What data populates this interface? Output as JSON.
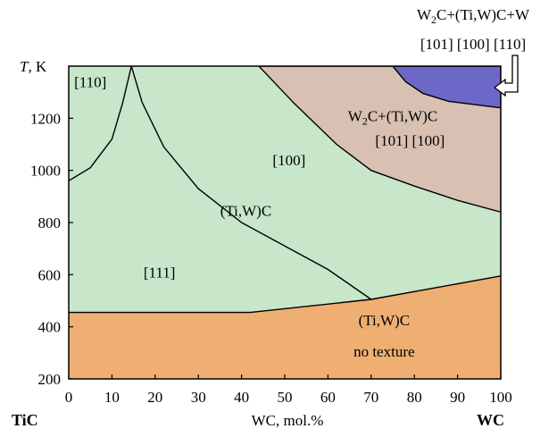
{
  "chart_data": {
    "type": "phase-diagram",
    "xlabel": "WC, mol.%",
    "ylabel": "T, K",
    "xlim": [
      0,
      100
    ],
    "ylim": [
      200,
      1400
    ],
    "x_ticks": [
      "0",
      "10",
      "20",
      "30",
      "40",
      "50",
      "60",
      "70",
      "80",
      "90",
      "100"
    ],
    "y_ticks": [
      "200",
      "400",
      "600",
      "800",
      "1000",
      "1200"
    ],
    "left_end_label": "TiC",
    "right_end_label": "WC",
    "colors": {
      "no_texture": "#efae72",
      "green_region": "#c8e6c9",
      "tan_region": "#d8c0b2",
      "blue_region": "#6d68c8"
    },
    "boundaries": {
      "lower_boundary": [
        [
          0,
          455
        ],
        [
          42,
          455
        ],
        [
          70,
          505
        ],
        [
          100,
          595
        ]
      ],
      "texture_111_110": [
        [
          0,
          960
        ],
        [
          5,
          1010
        ],
        [
          10,
          1120
        ],
        [
          12.5,
          1260
        ],
        [
          14.5,
          1400
        ]
      ],
      "texture_110_100_111": [
        [
          14.5,
          1400
        ],
        [
          17,
          1260
        ],
        [
          22,
          1090
        ],
        [
          30,
          930
        ],
        [
          40,
          800
        ],
        [
          50,
          710
        ],
        [
          60,
          620
        ],
        [
          70,
          505
        ]
      ],
      "green_tan": [
        [
          44,
          1400
        ],
        [
          52,
          1260
        ],
        [
          62,
          1100
        ],
        [
          70,
          1000
        ],
        [
          80,
          940
        ],
        [
          90,
          885
        ],
        [
          100,
          840
        ]
      ],
      "tan_blue": [
        [
          75,
          1400
        ],
        [
          78,
          1340
        ],
        [
          82,
          1295
        ],
        [
          88,
          1265
        ],
        [
          100,
          1240
        ]
      ]
    },
    "region_labels": [
      {
        "text": "[110]",
        "x": 5,
        "y": 1320
      },
      {
        "text": "[100]",
        "x": 51,
        "y": 1020
      },
      {
        "text": "(Ti,W)C",
        "x": 41,
        "y": 825
      },
      {
        "text": "[111]",
        "x": 21,
        "y": 590
      },
      {
        "text": "W2C+(Ti,W)C",
        "x": 75,
        "y": 1190
      },
      {
        "text": "[101]   [100]",
        "x": 79,
        "y": 1095
      },
      {
        "text": "(Ti,W)C",
        "x": 73,
        "y": 405
      },
      {
        "text": "no texture",
        "x": 73,
        "y": 285
      }
    ],
    "top_annotation": {
      "line1": "W2C+(Ti,W)C+W",
      "line2": "[101]  [100]  [110]"
    }
  }
}
